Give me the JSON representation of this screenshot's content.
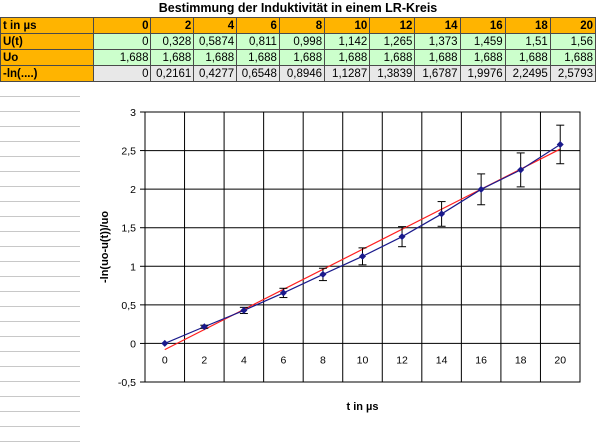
{
  "title": "Bestimmung der Induktivität in einem LR-Kreis",
  "table": {
    "header": [
      "t in µs",
      "0",
      "2",
      "4",
      "6",
      "8",
      "10",
      "12",
      "14",
      "16",
      "18",
      "20"
    ],
    "rows": [
      {
        "label": "U(t)",
        "cells": [
          "0",
          "0,328",
          "0,5874",
          "0,811",
          "0,998",
          "1,142",
          "1,265",
          "1,373",
          "1,459",
          "1,51",
          "1,56"
        ],
        "style": "green"
      },
      {
        "label": "Uo",
        "cells": [
          "1,688",
          "1,688",
          "1,688",
          "1,688",
          "1,688",
          "1,688",
          "1,688",
          "1,688",
          "1,688",
          "1,688",
          "1,688"
        ],
        "style": "green"
      },
      {
        "label": "-ln(....)",
        "cells": [
          "0",
          "0,2161",
          "0,4277",
          "0,6548",
          "0,8946",
          "1,1287",
          "1,3839",
          "1,6787",
          "1,9976",
          "2,2495",
          "2,5793"
        ],
        "style": "gray"
      }
    ]
  },
  "colors": {
    "series": "#1a1a8c",
    "trend": "#ff2020",
    "header_bg": "#ffb400",
    "cell_green": "#ccffcc",
    "cell_gray": "#e8e8e8"
  },
  "chart_data": {
    "type": "scatter",
    "xlabel": "t in µs",
    "ylabel": "-ln(uo-u(t))/uo",
    "xlim": [
      -1,
      21
    ],
    "ylim": [
      -0.5,
      3
    ],
    "xticks": [
      "0",
      "2",
      "4",
      "6",
      "8",
      "10",
      "12",
      "14",
      "16",
      "18",
      "20"
    ],
    "yticks": [
      "-0,5",
      "0",
      "0,5",
      "1",
      "1,5",
      "2",
      "2,5",
      "3"
    ],
    "grid": true,
    "series": [
      {
        "x": [
          0,
          2,
          4,
          6,
          8,
          10,
          12,
          14,
          16,
          18,
          20
        ],
        "y": [
          0,
          0.2161,
          0.4277,
          0.6548,
          0.8946,
          1.1287,
          1.3839,
          1.6787,
          1.9976,
          2.2495,
          2.5793
        ],
        "error": [
          0,
          0.02,
          0.04,
          0.06,
          0.08,
          0.11,
          0.13,
          0.16,
          0.2,
          0.22,
          0.25
        ]
      }
    ],
    "trendline": {
      "type": "linear",
      "x": [
        0,
        20
      ],
      "y": [
        -0.08,
        2.52
      ]
    }
  }
}
